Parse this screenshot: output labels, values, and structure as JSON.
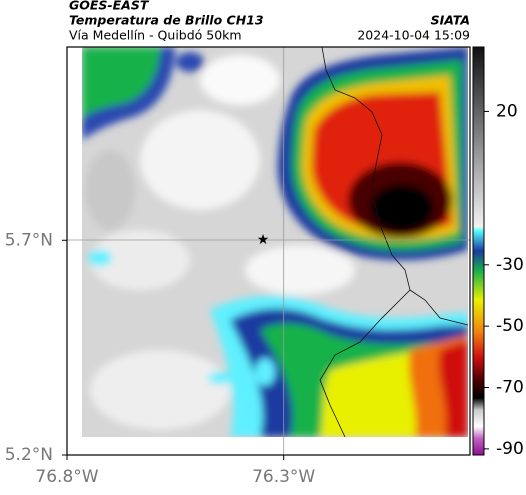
{
  "header": {
    "title": "GOES-EAST",
    "subtitle": "Temperatura de Brillo CH13",
    "source": "SIATA",
    "location": "Vía Medellín - Quibdó 50km",
    "datetime": "2024-10-04 15:09"
  },
  "map": {
    "latlim": [
      5.2,
      6.15
    ],
    "lonlim": [
      -76.8,
      -75.87
    ],
    "lat_ticks": [
      {
        "value": 5.7,
        "label": "5.7°N"
      },
      {
        "value": 5.2,
        "label": "5.2°N"
      }
    ],
    "lon_ticks": [
      {
        "value": -76.8,
        "label": "76.8°W"
      },
      {
        "value": -76.3,
        "label": "76.3°W"
      }
    ],
    "colorbar_lim": [
      41,
      -92
    ],
    "colorbar_ticks": [
      20,
      -30,
      -50,
      -70,
      -90
    ]
  }
}
